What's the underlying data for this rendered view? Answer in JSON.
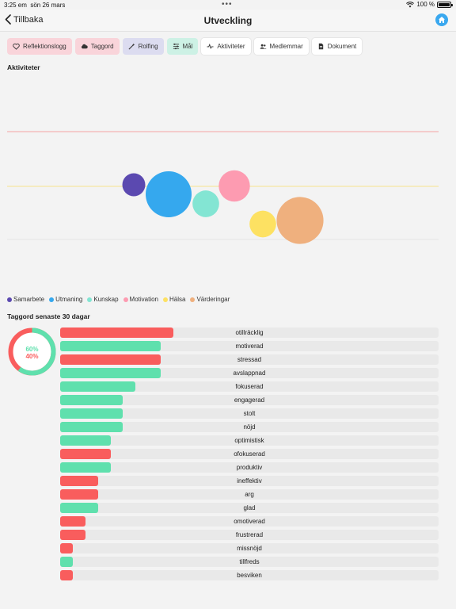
{
  "status_bar": {
    "time": "3:25 em",
    "date": "sön 26 mars",
    "battery": "100 %"
  },
  "nav": {
    "back_label": "Tillbaka",
    "title": "Utveckling"
  },
  "tabs": [
    {
      "label": "Reflektionslogg",
      "icon": "heart-icon"
    },
    {
      "label": "Taggord",
      "icon": "cloud-icon"
    },
    {
      "label": "Rolfing",
      "icon": "wand-icon"
    },
    {
      "label": "Mål",
      "icon": "sliders-icon"
    },
    {
      "label": "Aktiviteter",
      "icon": "activity-icon"
    },
    {
      "label": "Medlemmar",
      "icon": "users-icon"
    },
    {
      "label": "Dokument",
      "icon": "document-icon"
    }
  ],
  "activities": {
    "title": "Aktiviteter"
  },
  "chart_data": {
    "type": "scatter",
    "legend_placement": "bottom-left",
    "reference_lines": [
      {
        "color": "#f5a3a3",
        "level": "upper"
      },
      {
        "color": "#f7e38c",
        "level": "middle"
      },
      {
        "color": "#e5e5e5",
        "level": "lower"
      }
    ],
    "series": [
      {
        "name": "Samarbete",
        "color": "#5b49b0",
        "relative_size": 0.5,
        "level": 0.66
      },
      {
        "name": "Utmaning",
        "color": "#35a8ee",
        "relative_size": 1.0,
        "level": 0.58
      },
      {
        "name": "Kunskap",
        "color": "#83e5d3",
        "relative_size": 0.58,
        "level": 0.5
      },
      {
        "name": "Motivation",
        "color": "#fd9bb1",
        "relative_size": 0.68,
        "level": 0.65
      },
      {
        "name": "Hälsa",
        "color": "#fde162",
        "relative_size": 0.58,
        "level": 0.33
      },
      {
        "name": "Värderingar",
        "color": "#efb07e",
        "relative_size": 1.02,
        "level": 0.36
      }
    ]
  },
  "tag_words": {
    "title": "Taggord senaste 30 dagar",
    "positive_pct": "60%",
    "negative_pct": "40%",
    "positive_fraction": 0.6,
    "items": [
      {
        "word": "otillräcklig",
        "value": 9,
        "sentiment": "neg"
      },
      {
        "word": "motiverad",
        "value": 8,
        "sentiment": "pos"
      },
      {
        "word": "stressad",
        "value": 8,
        "sentiment": "neg"
      },
      {
        "word": "avslappnad",
        "value": 8,
        "sentiment": "pos"
      },
      {
        "word": "fokuserad",
        "value": 6,
        "sentiment": "pos"
      },
      {
        "word": "engagerad",
        "value": 5,
        "sentiment": "pos"
      },
      {
        "word": "stolt",
        "value": 5,
        "sentiment": "pos"
      },
      {
        "word": "nöjd",
        "value": 5,
        "sentiment": "pos"
      },
      {
        "word": "optimistisk",
        "value": 4,
        "sentiment": "pos"
      },
      {
        "word": "ofokuserad",
        "value": 4,
        "sentiment": "neg"
      },
      {
        "word": "produktiv",
        "value": 4,
        "sentiment": "pos"
      },
      {
        "word": "ineffektiv",
        "value": 3,
        "sentiment": "neg"
      },
      {
        "word": "arg",
        "value": 3,
        "sentiment": "neg"
      },
      {
        "word": "glad",
        "value": 3,
        "sentiment": "pos"
      },
      {
        "word": "omotiverad",
        "value": 2,
        "sentiment": "neg"
      },
      {
        "word": "frustrerad",
        "value": 2,
        "sentiment": "neg"
      },
      {
        "word": "missnöjd",
        "value": 1,
        "sentiment": "neg"
      },
      {
        "word": "tillfreds",
        "value": 1,
        "sentiment": "pos"
      },
      {
        "word": "besviken",
        "value": 1,
        "sentiment": "neg"
      }
    ]
  },
  "colors": {
    "positive": "#5fe0ad",
    "negative": "#f95d5d",
    "accent": "#3aa8ef"
  }
}
